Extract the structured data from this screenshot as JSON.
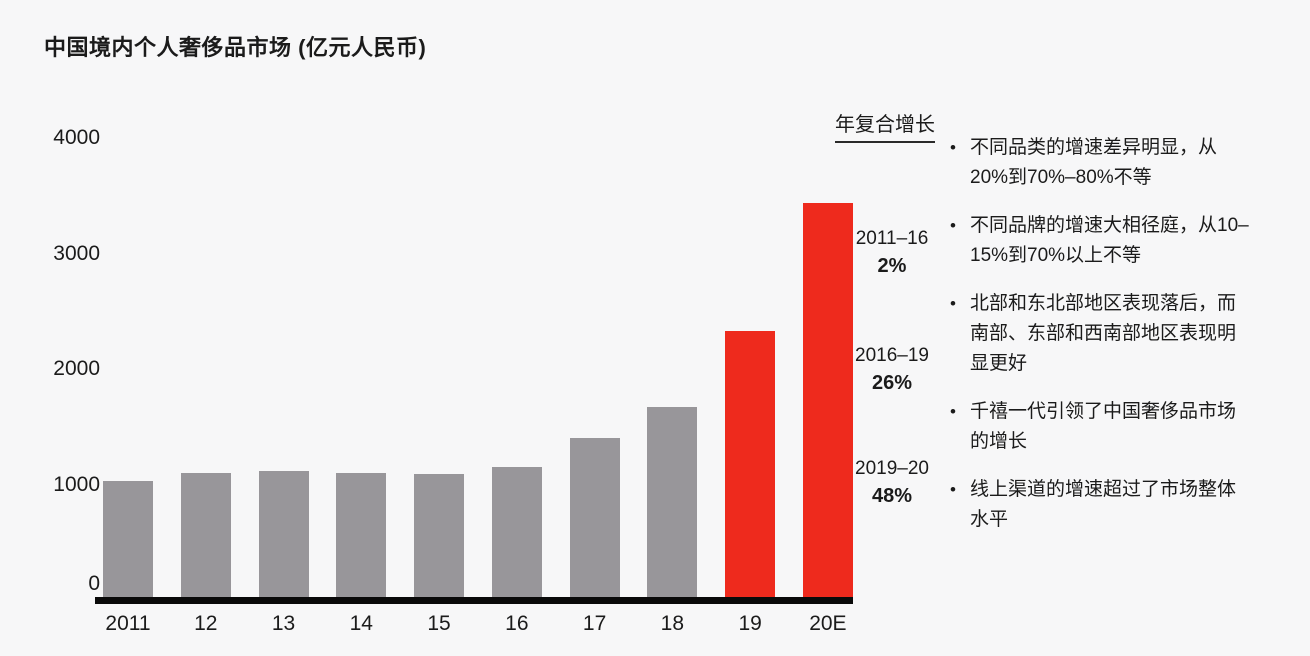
{
  "title": "中国境内个人奢侈品市场 (亿元人民币)",
  "chart_data": {
    "type": "bar",
    "title": "中国境内个人奢侈品市场 (亿元人民币)",
    "categories": [
      "2011",
      "12",
      "13",
      "14",
      "15",
      "16",
      "17",
      "18",
      "19",
      "20E"
    ],
    "values": [
      1030,
      1100,
      1120,
      1100,
      1090,
      1150,
      1400,
      1670,
      2330,
      3440
    ],
    "highlight_indices": [
      8,
      9
    ],
    "ylim": [
      0,
      4000
    ],
    "yticks": [
      0,
      1000,
      2000,
      3000,
      4000
    ],
    "xlabel": "",
    "ylabel": "亿元人民币",
    "grid": "off",
    "legend": "none",
    "colors": {
      "bar_default": "#98969a",
      "bar_highlight": "#ee2a1d",
      "axis": "#0a0a0a",
      "background": "#f7f7f8",
      "text": "#1b1b1b"
    }
  },
  "cagr_panel": {
    "heading": "年复合增长",
    "entries": [
      {
        "period": "2011–16",
        "value": "2%"
      },
      {
        "period": "2016–19",
        "value": "26%"
      },
      {
        "period": "2019–20",
        "value": "48%"
      }
    ]
  },
  "bullets": [
    "不同品类的增速差异明显，从20%到70%–80%不等",
    "不同品牌的增速大相径庭，从10–15%到70%以上不等",
    "北部和东北部地区表现落后，而南部、东部和西南部地区表现明显更好",
    "千禧一代引领了中国奢侈品市场的增长",
    "线上渠道的增速超过了市场整体水平"
  ]
}
